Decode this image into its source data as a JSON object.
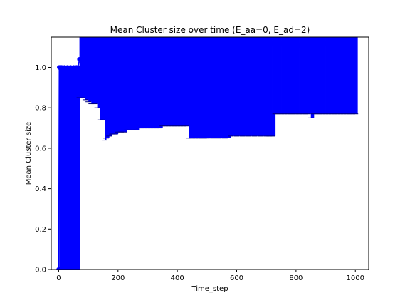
{
  "chart_data": {
    "type": "line",
    "title": "Mean Cluster size over time (E_aa=0, E_ad=2)",
    "xlabel": "Time_step",
    "ylabel": "Mean Cluster size",
    "xlim": [
      -25,
      1045
    ],
    "ylim": [
      0,
      1.15
    ],
    "xticks": [
      0,
      200,
      400,
      600,
      800,
      1000
    ],
    "xtick_labels": [
      "0",
      "200",
      "400",
      "600",
      "800",
      "1000"
    ],
    "yticks": [
      0,
      0.2,
      0.4,
      0.6,
      0.8,
      1.0
    ],
    "ytick_labels": [
      "0.0",
      "0.2",
      "0.4",
      "0.6",
      "0.8",
      "1.0"
    ],
    "grid": false,
    "legend": "none",
    "series": [
      {
        "color": "#0000ff",
        "marker": "circle",
        "x": [
          0,
          2,
          5,
          10,
          20,
          30,
          40,
          50,
          60,
          65,
          70,
          80,
          90,
          100,
          110,
          120,
          130,
          140,
          150,
          155,
          160,
          170,
          180,
          190,
          200,
          210,
          220,
          230,
          240,
          250,
          260,
          270,
          280,
          290,
          300,
          310,
          320,
          330,
          340,
          350,
          360,
          370,
          380,
          390,
          400,
          410,
          420,
          430,
          440,
          450,
          460,
          470,
          480,
          490,
          500,
          520,
          540,
          560,
          580,
          600,
          620,
          640,
          660,
          680,
          700,
          710,
          720,
          730,
          740,
          750,
          760,
          770,
          780,
          790,
          800,
          810,
          820,
          830,
          840,
          850,
          860,
          870,
          880,
          890,
          900,
          910,
          920,
          930,
          940,
          950,
          960,
          970,
          980,
          990,
          1000
        ],
        "y": [
          0.0,
          1.0,
          1.0,
          1.0,
          1.0,
          1.0,
          1.0,
          1.0,
          1.0,
          1.0,
          1.04,
          1.05,
          1.06,
          1.07,
          1.07,
          1.08,
          1.09,
          1.09,
          1.09,
          1.1,
          1.1,
          1.1,
          1.09,
          1.09,
          1.09,
          1.09,
          1.09,
          1.09,
          1.09,
          1.09,
          1.09,
          1.09,
          1.09,
          1.09,
          1.09,
          1.08,
          1.09,
          1.09,
          1.09,
          1.09,
          1.09,
          1.09,
          1.1,
          1.11,
          1.12,
          1.12,
          1.12,
          1.12,
          1.12,
          1.12,
          1.12,
          1.12,
          1.12,
          1.12,
          1.12,
          1.12,
          1.12,
          1.12,
          1.12,
          1.12,
          1.12,
          1.12,
          1.12,
          1.12,
          1.12,
          1.12,
          1.12,
          1.12,
          1.12,
          1.12,
          1.12,
          1.12,
          1.12,
          1.12,
          1.11,
          1.11,
          1.11,
          1.12,
          1.12,
          1.12,
          1.12,
          1.12,
          1.12,
          1.12,
          1.12,
          1.12,
          1.12,
          1.13,
          1.13,
          1.13,
          1.13,
          1.13,
          1.14,
          1.14,
          1.14
        ],
        "yerr_low": [
          0.0,
          0.0,
          0.0,
          0.0,
          0.0,
          0.0,
          0.0,
          0.0,
          0.0,
          0.0,
          0.85,
          0.85,
          0.84,
          0.83,
          0.82,
          0.82,
          0.8,
          0.74,
          0.74,
          0.64,
          0.65,
          0.66,
          0.67,
          0.67,
          0.68,
          0.68,
          0.68,
          0.69,
          0.69,
          0.69,
          0.69,
          0.7,
          0.7,
          0.7,
          0.7,
          0.7,
          0.7,
          0.7,
          0.7,
          0.71,
          0.71,
          0.71,
          0.71,
          0.71,
          0.71,
          0.71,
          0.71,
          0.71,
          0.65,
          0.65,
          0.65,
          0.65,
          0.65,
          0.65,
          0.65,
          0.65,
          0.65,
          0.65,
          0.66,
          0.66,
          0.66,
          0.66,
          0.66,
          0.66,
          0.66,
          0.66,
          0.66,
          0.77,
          0.77,
          0.77,
          0.77,
          0.77,
          0.77,
          0.77,
          0.77,
          0.77,
          0.77,
          0.77,
          0.77,
          0.75,
          0.77,
          0.77,
          0.77,
          0.77,
          0.77,
          0.77,
          0.77,
          0.77,
          0.77,
          0.77,
          0.77,
          0.77,
          0.77,
          0.77,
          0.77
        ],
        "yerr_high": [
          0.0,
          1.0,
          1.0,
          1.0,
          1.0,
          1.0,
          1.0,
          1.0,
          1.0,
          1.0,
          1.15,
          1.15,
          1.15,
          1.15,
          1.15,
          1.15,
          1.15,
          1.15,
          1.15,
          1.15,
          1.15,
          1.15,
          1.15,
          1.15,
          1.15,
          1.15,
          1.15,
          1.15,
          1.15,
          1.15,
          1.15,
          1.15,
          1.15,
          1.15,
          1.15,
          1.15,
          1.15,
          1.15,
          1.15,
          1.15,
          1.15,
          1.15,
          1.15,
          1.15,
          1.15,
          1.15,
          1.15,
          1.15,
          1.15,
          1.15,
          1.15,
          1.15,
          1.15,
          1.15,
          1.15,
          1.15,
          1.15,
          1.15,
          1.15,
          1.15,
          1.15,
          1.15,
          1.15,
          1.15,
          1.15,
          1.15,
          1.15,
          1.15,
          1.15,
          1.15,
          1.15,
          1.15,
          1.15,
          1.15,
          1.15,
          1.15,
          1.15,
          1.15,
          1.15,
          1.15,
          1.15,
          1.15,
          1.15,
          1.15,
          1.15,
          1.15,
          1.15,
          1.15,
          1.15,
          1.15,
          1.15,
          1.15,
          1.15,
          1.15,
          1.15
        ]
      }
    ]
  }
}
